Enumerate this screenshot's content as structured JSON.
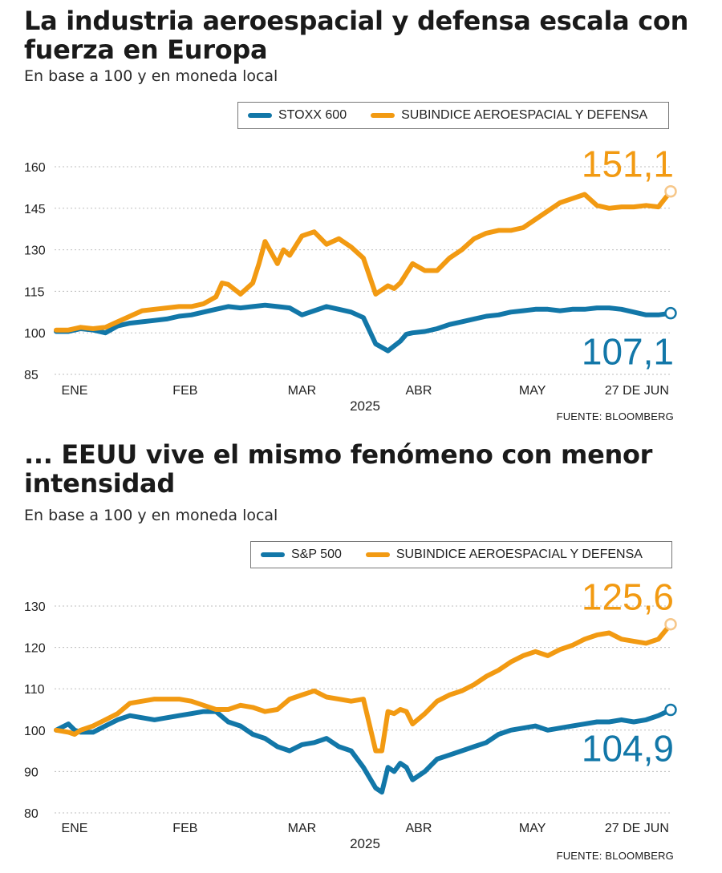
{
  "colors": {
    "blue": "#1277a8",
    "orange": "#f29a12",
    "orange_light": "#f6c78a",
    "grid": "#bdbdbd"
  },
  "chart_data": [
    {
      "type": "line",
      "title": "La industria aeroespacial y defensa escala con fuerza en Europa",
      "subtitle": "En base a 100 y en moneda local",
      "source": "FUENTE: BLOOMBERG",
      "year_label": "2025",
      "ylim": [
        85,
        160
      ],
      "y_ticks": [
        85,
        100,
        115,
        130,
        145,
        160
      ],
      "y_tick_labels": [
        "85",
        "100",
        "115",
        "130",
        "145",
        "160"
      ],
      "x_labels": [
        {
          "t": 0.03,
          "text": "ENE"
        },
        {
          "t": 0.21,
          "text": "FEB"
        },
        {
          "t": 0.4,
          "text": "MAR"
        },
        {
          "t": 0.59,
          "text": "ABR"
        },
        {
          "t": 0.775,
          "text": "MAY"
        },
        {
          "t": 0.945,
          "text": "27 DE JUN"
        }
      ],
      "legend_position": "top-right",
      "series": [
        {
          "name": "STOXX 600",
          "end_label": "107,1",
          "x": [
            0,
            0.02,
            0.04,
            0.06,
            0.08,
            0.1,
            0.12,
            0.14,
            0.16,
            0.18,
            0.2,
            0.22,
            0.24,
            0.26,
            0.28,
            0.3,
            0.32,
            0.34,
            0.36,
            0.38,
            0.4,
            0.42,
            0.44,
            0.46,
            0.48,
            0.5,
            0.52,
            0.54,
            0.56,
            0.57,
            0.58,
            0.6,
            0.62,
            0.64,
            0.66,
            0.68,
            0.7,
            0.72,
            0.74,
            0.76,
            0.78,
            0.8,
            0.82,
            0.84,
            0.86,
            0.88,
            0.9,
            0.92,
            0.94,
            0.96,
            0.98,
            1.0
          ],
          "values": [
            100.5,
            100.5,
            101.5,
            101,
            100,
            102.5,
            103.5,
            104,
            104.5,
            105,
            106,
            106.5,
            107.5,
            108.5,
            109.5,
            109,
            109.5,
            110,
            109.5,
            109,
            106.5,
            108,
            109.5,
            108.5,
            107.5,
            105.5,
            96,
            93.5,
            97,
            99.5,
            100,
            100.5,
            101.5,
            103,
            104,
            105,
            106,
            106.5,
            107.5,
            108,
            108.5,
            108.5,
            108,
            108.5,
            108.5,
            109,
            109,
            108.5,
            107.5,
            106.5,
            106.5,
            107.1
          ]
        },
        {
          "name": "SUBINDICE  AEROESPACIAL Y DEFENSA",
          "end_label": "151,1",
          "x": [
            0,
            0.02,
            0.04,
            0.06,
            0.08,
            0.1,
            0.12,
            0.14,
            0.16,
            0.18,
            0.2,
            0.22,
            0.24,
            0.26,
            0.27,
            0.28,
            0.3,
            0.32,
            0.33,
            0.34,
            0.36,
            0.37,
            0.38,
            0.4,
            0.42,
            0.44,
            0.46,
            0.48,
            0.5,
            0.52,
            0.54,
            0.55,
            0.56,
            0.58,
            0.6,
            0.62,
            0.64,
            0.66,
            0.68,
            0.7,
            0.72,
            0.74,
            0.76,
            0.78,
            0.8,
            0.82,
            0.84,
            0.86,
            0.88,
            0.9,
            0.92,
            0.94,
            0.96,
            0.98,
            1.0
          ],
          "values": [
            101,
            101,
            102,
            101.5,
            102,
            104,
            106,
            108,
            108.5,
            109,
            109.5,
            109.5,
            110.5,
            113,
            118,
            117.5,
            114,
            118,
            125,
            133,
            125,
            130,
            128,
            135,
            136.5,
            132,
            134,
            131,
            127,
            114,
            117,
            116,
            118,
            125,
            122.5,
            122.5,
            127,
            130,
            134,
            136,
            137,
            137,
            138,
            141,
            144,
            147,
            148.5,
            150,
            146,
            145,
            145.5,
            145.5,
            146,
            145.5,
            151.1
          ]
        }
      ]
    },
    {
      "type": "line",
      "title": "... EEUU vive el mismo fenómeno con menor intensidad",
      "subtitle": "En base a 100 y en moneda local",
      "source": "FUENTE: BLOOMBERG",
      "year_label": "2025",
      "ylim": [
        80,
        130
      ],
      "y_ticks": [
        80,
        90,
        100,
        110,
        120,
        130
      ],
      "y_tick_labels": [
        "80",
        "90",
        "100",
        "110",
        "120",
        "130"
      ],
      "x_labels": [
        {
          "t": 0.03,
          "text": "ENE"
        },
        {
          "t": 0.21,
          "text": "FEB"
        },
        {
          "t": 0.4,
          "text": "MAR"
        },
        {
          "t": 0.59,
          "text": "ABR"
        },
        {
          "t": 0.775,
          "text": "MAY"
        },
        {
          "t": 0.945,
          "text": "27 DE JUN"
        }
      ],
      "legend_position": "top-right",
      "series": [
        {
          "name": "S&P 500",
          "end_label": "104,9",
          "x": [
            0,
            0.02,
            0.03,
            0.04,
            0.06,
            0.08,
            0.1,
            0.12,
            0.14,
            0.16,
            0.18,
            0.2,
            0.22,
            0.24,
            0.26,
            0.28,
            0.3,
            0.32,
            0.34,
            0.36,
            0.38,
            0.4,
            0.42,
            0.44,
            0.46,
            0.48,
            0.5,
            0.52,
            0.53,
            0.54,
            0.55,
            0.56,
            0.57,
            0.58,
            0.6,
            0.62,
            0.64,
            0.66,
            0.68,
            0.7,
            0.72,
            0.74,
            0.76,
            0.78,
            0.8,
            0.82,
            0.84,
            0.86,
            0.88,
            0.9,
            0.92,
            0.94,
            0.96,
            0.98,
            1.0
          ],
          "values": [
            100,
            101.5,
            100,
            99.5,
            99.5,
            101,
            102.5,
            103.5,
            103,
            102.5,
            103,
            103.5,
            104,
            104.5,
            104.5,
            102,
            101,
            99,
            98,
            96,
            95,
            96.5,
            97,
            98,
            96,
            95,
            91,
            86,
            85,
            91,
            90,
            92,
            91,
            88,
            90,
            93,
            94,
            95,
            96,
            97,
            99,
            100,
            100.5,
            101,
            100,
            100.5,
            101,
            101.5,
            102,
            102,
            102.5,
            102,
            102.5,
            103.5,
            104.9
          ]
        },
        {
          "name": "SUBINDICE  AEROESPACIAL Y DEFENSA",
          "end_label": "125,6",
          "x": [
            0,
            0.02,
            0.03,
            0.04,
            0.06,
            0.08,
            0.1,
            0.12,
            0.14,
            0.16,
            0.18,
            0.2,
            0.22,
            0.24,
            0.26,
            0.28,
            0.3,
            0.32,
            0.34,
            0.36,
            0.38,
            0.4,
            0.42,
            0.44,
            0.46,
            0.48,
            0.5,
            0.52,
            0.53,
            0.54,
            0.55,
            0.56,
            0.57,
            0.58,
            0.6,
            0.62,
            0.64,
            0.66,
            0.68,
            0.7,
            0.72,
            0.74,
            0.76,
            0.78,
            0.8,
            0.82,
            0.84,
            0.86,
            0.88,
            0.9,
            0.92,
            0.94,
            0.96,
            0.98,
            1.0
          ],
          "values": [
            100,
            99.5,
            99,
            100,
            101,
            102.5,
            104,
            106.5,
            107,
            107.5,
            107.5,
            107.5,
            107,
            106,
            105,
            105,
            106,
            105.5,
            104.5,
            105,
            107.5,
            108.5,
            109.5,
            108,
            107.5,
            107,
            107.5,
            95,
            95,
            104.5,
            104,
            105,
            104.5,
            101.5,
            104,
            107,
            108.5,
            109.5,
            111,
            113,
            114.5,
            116.5,
            118,
            119,
            118,
            119.5,
            120.5,
            122,
            123,
            123.5,
            122,
            121.5,
            121,
            122,
            125.6
          ]
        }
      ]
    }
  ]
}
